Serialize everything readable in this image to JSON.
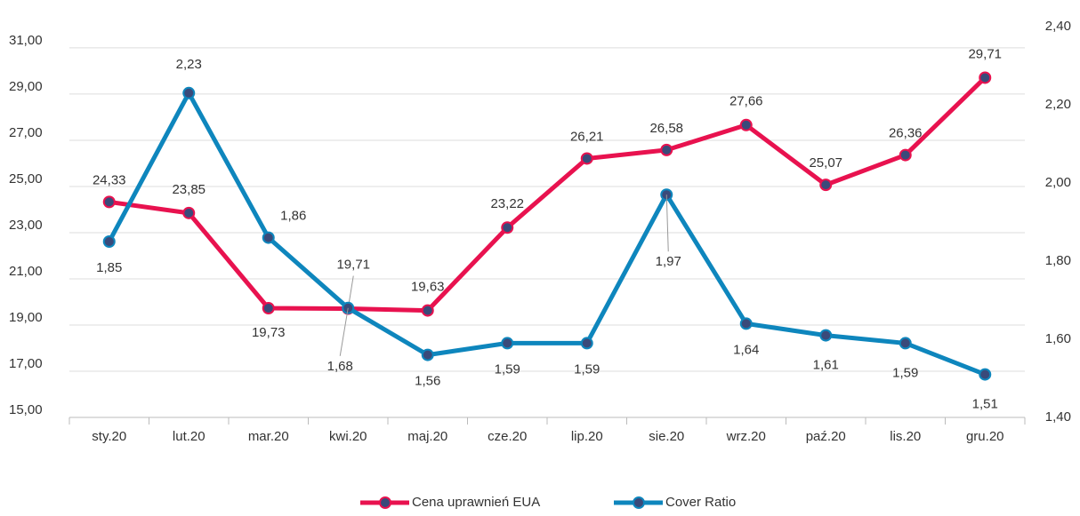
{
  "chart_data": {
    "type": "line",
    "categories": [
      "sty.20",
      "lut.20",
      "mar.20",
      "kwi.20",
      "maj.20",
      "cze.20",
      "lip.20",
      "sie.20",
      "wrz.20",
      "paź.20",
      "lis.20",
      "gru.20"
    ],
    "series": [
      {
        "name": "Cena uprawnień EUA",
        "color": "#e8124f",
        "values": [
          24.33,
          23.85,
          19.73,
          19.71,
          19.63,
          23.22,
          26.21,
          26.58,
          27.66,
          25.07,
          26.36,
          29.71
        ],
        "value_labels": [
          "24,33",
          "23,85",
          "19,73",
          "19,71",
          "19,63",
          "23,22",
          "26,21",
          "26,58",
          "27,66",
          "25,07",
          "26,36",
          "29,71"
        ]
      },
      {
        "name": "Cover Ratio",
        "color": "#0e86bd",
        "axis": "y2",
        "values": [
          1.85,
          2.23,
          1.86,
          1.68,
          1.56,
          1.59,
          1.59,
          1.97,
          1.64,
          1.61,
          1.59,
          1.51
        ],
        "value_labels": [
          "1,85",
          "2,23",
          "1,86",
          "1,68",
          "1,56",
          "1,59",
          "1,59",
          "1,97",
          "1,64",
          "1,61",
          "1,59",
          "1,51"
        ]
      }
    ],
    "ylim": [
      15,
      31.92
    ],
    "yticks": [
      {
        "value": 15,
        "label": "15,00"
      },
      {
        "value": 17,
        "label": "17,00"
      },
      {
        "value": 19,
        "label": "19,00"
      },
      {
        "value": 21,
        "label": "21,00"
      },
      {
        "value": 23,
        "label": "23,00"
      },
      {
        "value": 25,
        "label": "25,00"
      },
      {
        "value": 27,
        "label": "27,00"
      },
      {
        "value": 29,
        "label": "29,00"
      },
      {
        "value": 31,
        "label": "31,00"
      }
    ],
    "y2lim": [
      1.4,
      2.4
    ],
    "y2ticks": [
      {
        "value": 1.4,
        "label": "1,40"
      },
      {
        "value": 1.6,
        "label": "1,60"
      },
      {
        "value": 1.8,
        "label": "1,80"
      },
      {
        "value": 2.0,
        "label": "2,00"
      },
      {
        "value": 2.2,
        "label": "2,20"
      },
      {
        "value": 2.4,
        "label": "2,40"
      }
    ],
    "grid": true,
    "legend": "bottom"
  }
}
